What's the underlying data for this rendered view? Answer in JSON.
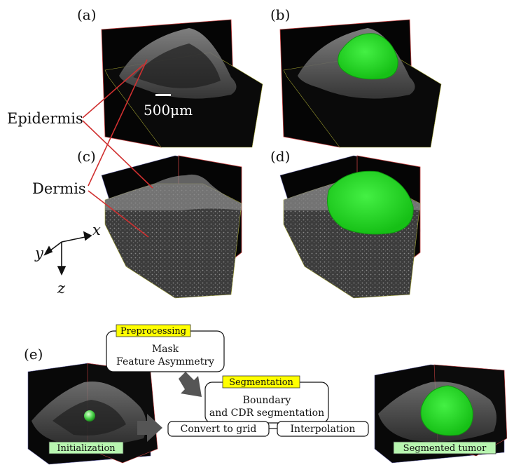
{
  "panels": {
    "a": "(a)",
    "b": "(b)",
    "c": "(c)",
    "d": "(d)",
    "e": "(e)"
  },
  "annotations": {
    "epidermis": "Epidermis",
    "dermis": "Dermis",
    "scale_bar": "500μm"
  },
  "axes": {
    "x": "x",
    "y": "y",
    "z": "z"
  },
  "pipeline": {
    "preprocessing_tag": "Preprocessing",
    "preprocessing_line1": "Mask",
    "preprocessing_line2": "Feature Asymmetry",
    "segmentation_tag": "Segmentation",
    "segmentation_line1": "Boundary",
    "segmentation_line2": "and CDR segmentation",
    "convert_to_grid": "Convert to grid",
    "interpolation": "Interpolation",
    "initialization": "Initialization",
    "segmented_tumor": "Segmented tumor"
  },
  "colors": {
    "tag_yellow": "#ffff00",
    "tag_green": "#b8f5b0",
    "tumor_green": "#22dd22",
    "line_red": "#d03030",
    "arrow_gray": "#555555"
  }
}
